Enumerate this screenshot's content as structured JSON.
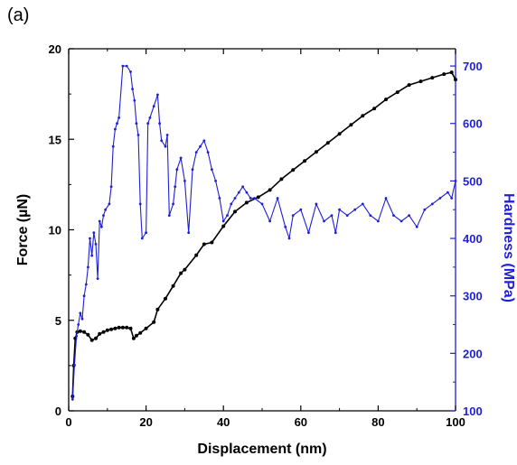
{
  "panel_label": "(a)",
  "chart_data": {
    "type": "line",
    "xlabel": "Displacement (nm)",
    "ylabel": "Force (µN)",
    "y2label": "Hardness (MPa)",
    "xlim": [
      0,
      100
    ],
    "ylim": [
      0,
      20
    ],
    "y2lim": [
      100,
      730
    ],
    "x_ticks": [
      0,
      20,
      40,
      60,
      80,
      100
    ],
    "y_ticks": [
      0,
      5,
      10,
      15,
      20
    ],
    "y2_ticks": [
      100,
      200,
      300,
      400,
      500,
      600,
      700
    ],
    "grid": false,
    "colors": {
      "force": "#000000",
      "hardness": "#1f1fd6",
      "right_axis": "#1f1fd6"
    },
    "series": [
      {
        "axis": "left",
        "x": [
          1.0,
          1.3,
          1.7,
          2.2,
          3,
          4,
          5,
          6,
          7,
          8,
          9,
          10,
          11,
          12,
          13,
          14,
          15,
          16,
          16.8,
          17.5,
          18.5,
          20,
          22,
          23,
          25,
          27,
          29,
          30,
          33,
          35,
          37,
          40,
          43,
          46,
          49,
          52,
          55,
          58,
          61,
          64,
          67,
          70,
          73,
          76,
          79,
          82,
          85,
          88,
          91,
          94,
          97,
          99,
          100
        ],
        "y": [
          0.8,
          2.5,
          4.0,
          4.35,
          4.4,
          4.35,
          4.2,
          3.9,
          4.0,
          4.25,
          4.35,
          4.45,
          4.5,
          4.55,
          4.6,
          4.6,
          4.6,
          4.55,
          4.0,
          4.15,
          4.3,
          4.55,
          4.9,
          5.6,
          6.2,
          6.9,
          7.6,
          7.8,
          8.6,
          9.2,
          9.3,
          10.2,
          11.0,
          11.5,
          11.8,
          12.2,
          12.8,
          13.3,
          13.8,
          14.3,
          14.8,
          15.3,
          15.8,
          16.3,
          16.7,
          17.2,
          17.6,
          18.0,
          18.2,
          18.4,
          18.6,
          18.7,
          18.3
        ]
      },
      {
        "axis": "right",
        "x": [
          1.0,
          1.5,
          2.0,
          2.5,
          3,
          3.5,
          4,
          4.5,
          5,
          5.5,
          6,
          6.5,
          7,
          7.5,
          8,
          8.5,
          9,
          9.5,
          10.5,
          11,
          11.5,
          12,
          12.5,
          13,
          14,
          15,
          16,
          16.5,
          17,
          17.5,
          18,
          18.5,
          19,
          20,
          20.5,
          21,
          22,
          23,
          23.5,
          24,
          25,
          25.5,
          26,
          27,
          27.5,
          28,
          29,
          30,
          31,
          32,
          33,
          34,
          35,
          36,
          37,
          38,
          39,
          40,
          41,
          42,
          43,
          44,
          45,
          46,
          47,
          48,
          50,
          52,
          54,
          56,
          57,
          58,
          60,
          62,
          64,
          66,
          68,
          69,
          70,
          72,
          74,
          76,
          78,
          80,
          82,
          84,
          86,
          88,
          90,
          92,
          94,
          96,
          98,
          99,
          100
        ],
        "y": [
          120,
          180,
          230,
          250,
          270,
          260,
          300,
          320,
          350,
          400,
          370,
          410,
          390,
          330,
          430,
          420,
          440,
          450,
          460,
          490,
          560,
          590,
          600,
          610,
          700,
          700,
          690,
          660,
          640,
          600,
          580,
          460,
          400,
          410,
          600,
          610,
          630,
          650,
          600,
          570,
          560,
          580,
          440,
          460,
          490,
          520,
          540,
          500,
          410,
          520,
          550,
          560,
          570,
          550,
          520,
          500,
          470,
          430,
          440,
          460,
          470,
          480,
          490,
          480,
          470,
          470,
          460,
          430,
          470,
          420,
          400,
          440,
          450,
          410,
          460,
          430,
          440,
          410,
          450,
          440,
          450,
          460,
          440,
          430,
          470,
          440,
          430,
          440,
          420,
          450,
          460,
          470,
          480,
          470,
          500
        ]
      }
    ]
  }
}
